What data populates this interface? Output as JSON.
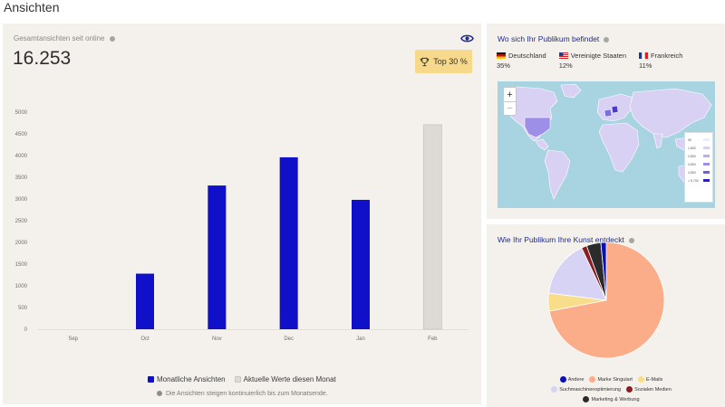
{
  "page": {
    "title": "Ansichten"
  },
  "views": {
    "total_label": "Gesamtansichten seit online",
    "total_value": "16.253",
    "badge": "Top 30 %",
    "legend": {
      "monthly": "Monatliche Ansichten",
      "current": "Aktuelle Werte diesen Monat"
    },
    "note": "Die Ansichten steigen kontinuierlich bis zum Monatsende.",
    "colors": {
      "monthly": "#1010c8",
      "current": "#dddad6"
    }
  },
  "chart_data": {
    "type": "bar",
    "categories": [
      "Sep",
      "Oct",
      "Nov",
      "Dec",
      "Jan",
      "Feb"
    ],
    "series": [
      {
        "name": "Monatliche Ansichten",
        "values": [
          0,
          1280,
          3310,
          3960,
          2980,
          null
        ]
      },
      {
        "name": "Aktuelle Werte diesen Monat",
        "values": [
          null,
          null,
          null,
          null,
          null,
          4710
        ]
      }
    ],
    "y_ticks": [
      "0",
      "500",
      "1000",
      "1500",
      "2000",
      "2500",
      "3000",
      "3500",
      "4000",
      "4500",
      "5000"
    ],
    "ylim": [
      0,
      5000
    ],
    "grid": false,
    "legend_position": "bottom"
  },
  "location": {
    "title": "Wo sich Ihr Publikum befindet",
    "countries": [
      {
        "name": "Deutschland",
        "share": "35%",
        "flag": "de-flag"
      },
      {
        "name": "Vereinigte Staaten",
        "share": "12%",
        "flag": "us-flag"
      },
      {
        "name": "Frankreich",
        "share": "11%",
        "flag": "fr-flag"
      }
    ],
    "map_legend": [
      "90",
      "1,800",
      "2,800",
      "3,800",
      "4,800",
      "> 5,700"
    ]
  },
  "discovery": {
    "title": "Wie Ihr Publikum Ihre Kunst entdeckt",
    "slices": [
      {
        "label": "Marke Singulart",
        "value": 72,
        "color": "#fbad8a"
      },
      {
        "label": "E-Mails",
        "value": 5,
        "color": "#f8dd8a"
      },
      {
        "label": "Suchmaschinenoptimierung",
        "value": 16,
        "color": "#d6d3f5"
      },
      {
        "label": "Sozialen Medien",
        "value": 1.5,
        "color": "#8b1e22"
      },
      {
        "label": "Marketing & Werbung",
        "value": 4,
        "color": "#2b2b2b"
      },
      {
        "label": "Andere",
        "value": 1.5,
        "color": "#0c0fb8"
      }
    ],
    "legend_order": [
      "Andere",
      "Marke Singulart",
      "E-Mails",
      "Suchmaschinenoptimierung",
      "Sozialen Medien",
      "Marketing & Werbung"
    ]
  }
}
